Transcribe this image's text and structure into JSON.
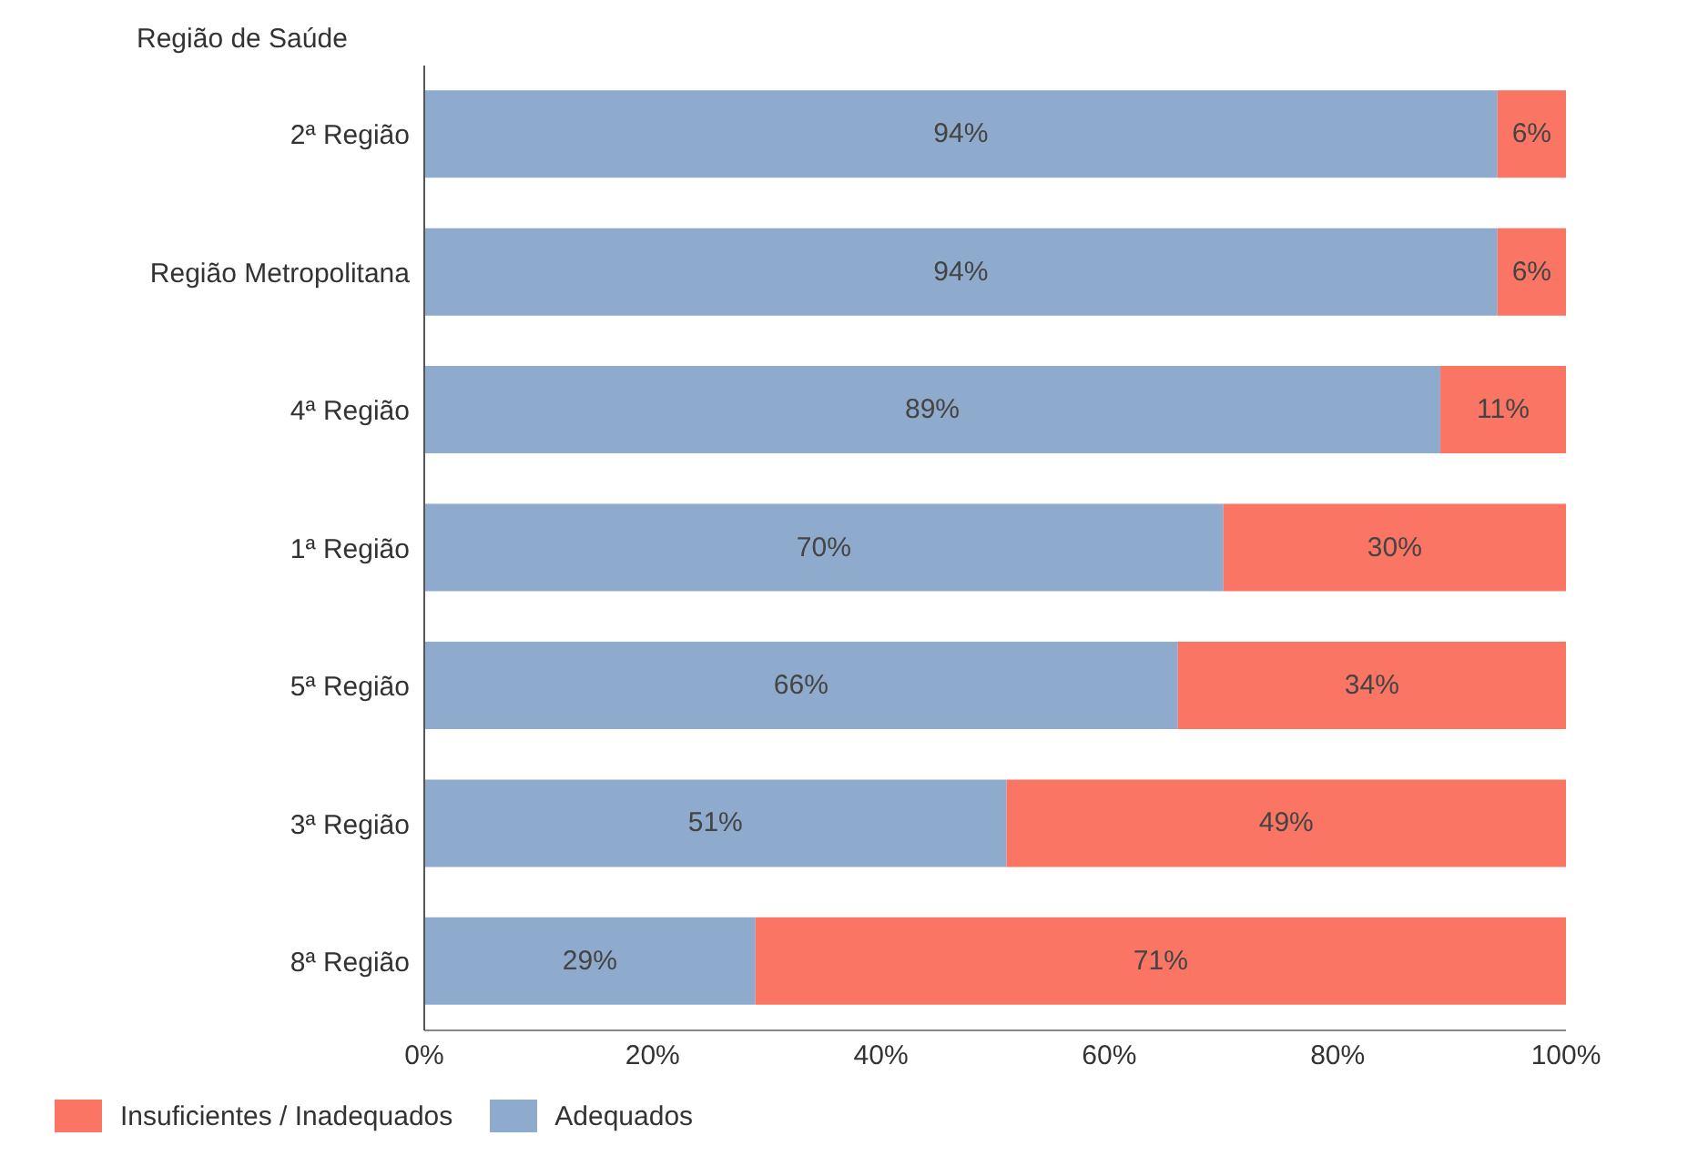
{
  "chart_data": {
    "type": "bar",
    "orientation": "horizontal",
    "stacked": true,
    "ylabel": "Região de Saúde",
    "categories": [
      "2ª Região",
      "Região Metropolitana",
      "4ª Região",
      "1ª Região",
      "5ª Região",
      "3ª Região",
      "8ª Região"
    ],
    "series": [
      {
        "name": "Adequados",
        "color": "#8eaacc",
        "values": [
          94,
          94,
          89,
          70,
          66,
          51,
          29
        ],
        "value_labels": [
          "94%",
          "94%",
          "89%",
          "70%",
          "66%",
          "51%",
          "29%"
        ]
      },
      {
        "name": "Insuficientes / Inadequados",
        "color": "#fa7563",
        "values": [
          6,
          6,
          11,
          30,
          34,
          49,
          71
        ],
        "value_labels": [
          "6%",
          "6%",
          "11%",
          "30%",
          "34%",
          "49%",
          "71%"
        ]
      }
    ],
    "xlim": [
      0,
      100
    ],
    "xticks": [
      {
        "value": 0,
        "label": "0%"
      },
      {
        "value": 20,
        "label": "20%"
      },
      {
        "value": 40,
        "label": "40%"
      },
      {
        "value": 60,
        "label": "60%"
      },
      {
        "value": 80,
        "label": "80%"
      },
      {
        "value": 100,
        "label": "100%"
      }
    ],
    "legend": "bottom left",
    "grid": false
  }
}
